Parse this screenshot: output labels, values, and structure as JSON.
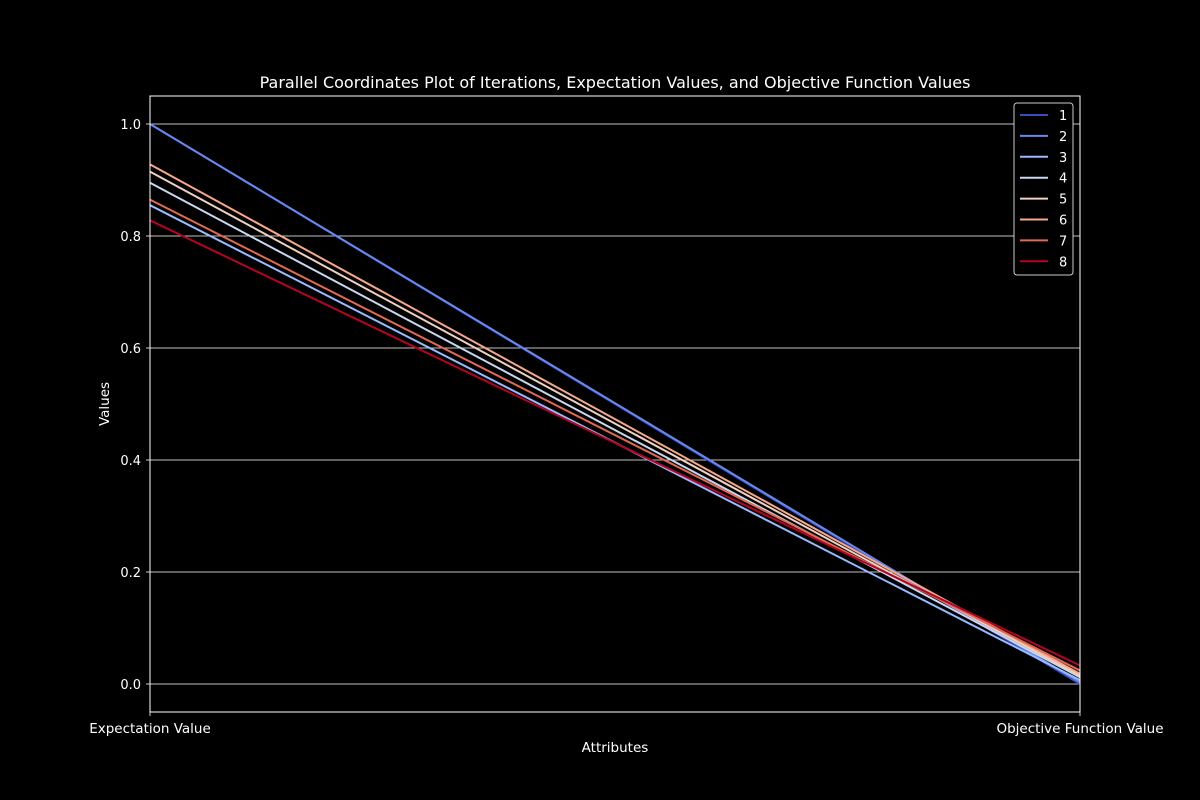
{
  "chart_data": {
    "type": "line",
    "subtype": "parallel-coordinates",
    "title": "Parallel Coordinates Plot of Iterations, Expectation Values, and Objective Function Values",
    "xlabel": "Attributes",
    "ylabel": "Values",
    "categories": [
      "Expectation Value",
      "Objective Function Value"
    ],
    "ylim": [
      -0.05,
      1.05
    ],
    "yticks": [
      0.0,
      0.2,
      0.4,
      0.6,
      0.8,
      1.0
    ],
    "ytick_labels": [
      "0.0",
      "0.2",
      "0.4",
      "0.6",
      "0.8",
      "1.0"
    ],
    "grid": "horizontal + vertical axes",
    "legend_position": "top-right",
    "background": "#000000",
    "series": [
      {
        "name": "1",
        "color": "#3b4cc0",
        "values": [
          1.0,
          0.0
        ]
      },
      {
        "name": "2",
        "color": "#6788ee",
        "values": [
          1.0,
          0.003
        ]
      },
      {
        "name": "3",
        "color": "#9abbff",
        "values": [
          0.855,
          0.007
        ]
      },
      {
        "name": "4",
        "color": "#c9d7f0",
        "values": [
          0.895,
          0.012
        ]
      },
      {
        "name": "5",
        "color": "#edd1c2",
        "values": [
          0.915,
          0.015
        ]
      },
      {
        "name": "6",
        "color": "#f7a889",
        "values": [
          0.928,
          0.018
        ]
      },
      {
        "name": "7",
        "color": "#e26952",
        "values": [
          0.865,
          0.024
        ]
      },
      {
        "name": "8",
        "color": "#b40426",
        "values": [
          0.828,
          0.033
        ]
      }
    ]
  }
}
